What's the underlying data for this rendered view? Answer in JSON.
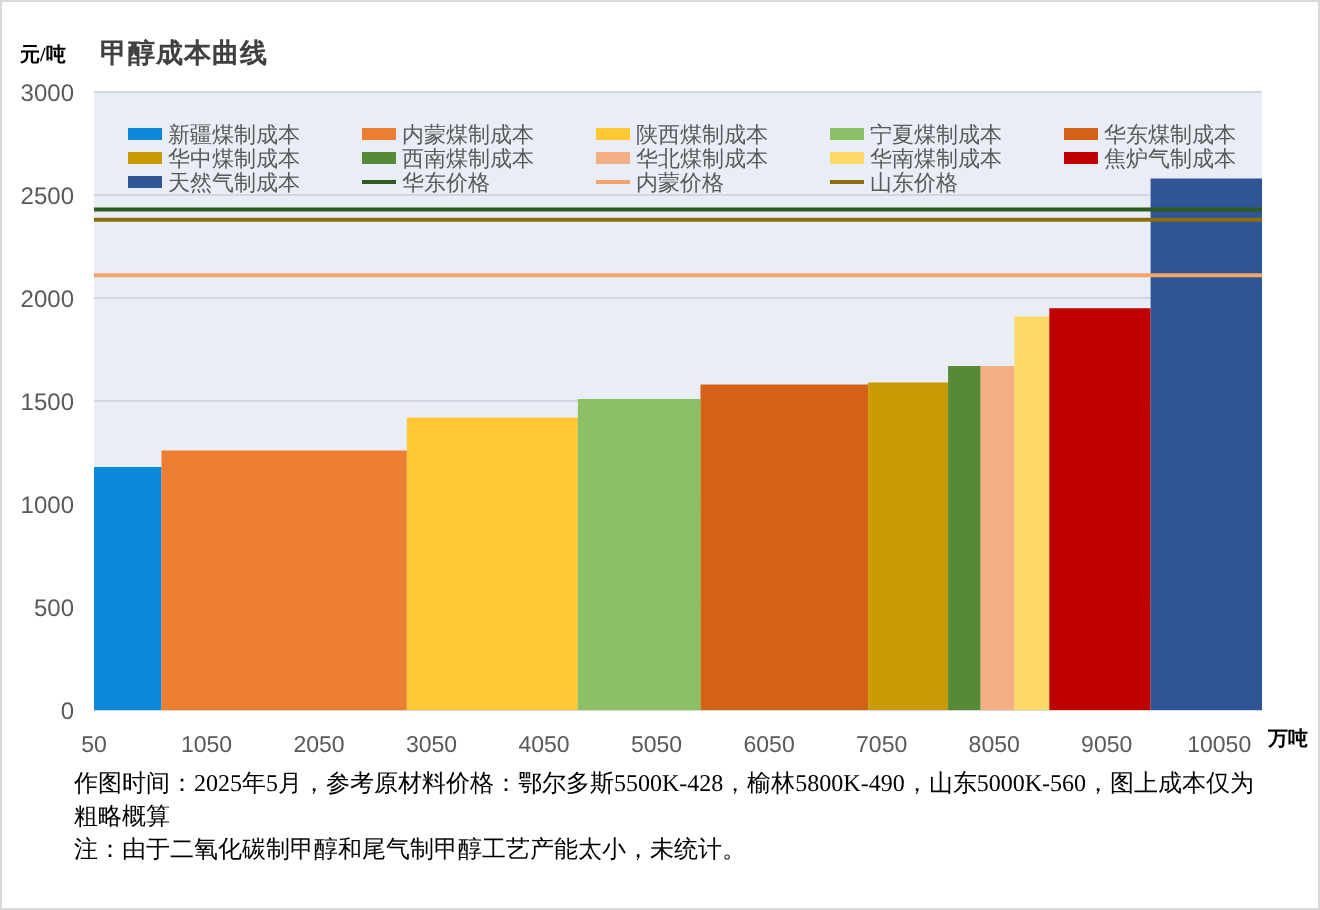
{
  "chart_data": {
    "type": "area",
    "title": "甲醇成本曲线",
    "xlabel": "万吨",
    "ylabel": "元/吨",
    "xlim": [
      50,
      10430
    ],
    "xticks": [
      50,
      1050,
      2050,
      3050,
      4050,
      5050,
      6050,
      7050,
      8050,
      9050,
      10050
    ],
    "ylim": [
      0,
      3000
    ],
    "yticks": [
      0,
      500,
      1000,
      1500,
      2000,
      2500,
      3000
    ],
    "grid": "y",
    "legend": "top",
    "series": [
      {
        "name": "新疆煤制成本",
        "color": "#0b88d8",
        "x": [
          50,
          650
        ],
        "values": [
          1180,
          1180
        ]
      },
      {
        "name": "内蒙煤制成本",
        "color": "#ed7d31",
        "x": [
          650,
          2830
        ],
        "values": [
          1260,
          1260
        ]
      },
      {
        "name": "陕西煤制成本",
        "color": "#ffc832",
        "x": [
          2830,
          4350
        ],
        "values": [
          1420,
          1420
        ]
      },
      {
        "name": "宁夏煤制成本",
        "color": "#8bc067",
        "x": [
          4350,
          5440
        ],
        "values": [
          1510,
          1510
        ]
      },
      {
        "name": "华东煤制成本",
        "color": "#d36116",
        "x": [
          5440,
          6930
        ],
        "values": [
          1580,
          1580
        ]
      },
      {
        "name": "华中煤制成本",
        "color": "#c99a03",
        "x": [
          6930,
          7640
        ],
        "values": [
          1590,
          1590
        ]
      },
      {
        "name": "西南煤制成本",
        "color": "#558a37",
        "x": [
          7640,
          7930
        ],
        "values": [
          1670,
          1670
        ]
      },
      {
        "name": "华北煤制成本",
        "color": "#f3af83",
        "x": [
          7930,
          8230
        ],
        "values": [
          1670,
          1670
        ]
      },
      {
        "name": "华南煤制成本",
        "color": "#ffd966",
        "x": [
          8230,
          8540
        ],
        "values": [
          1910,
          1910
        ]
      },
      {
        "name": "焦炉气制成本",
        "color": "#c00000",
        "x": [
          8540,
          9440
        ],
        "values": [
          1950,
          1950
        ]
      },
      {
        "name": "天然气制成本",
        "color": "#2f5597",
        "x": [
          9440,
          10430
        ],
        "values": [
          2580,
          2580
        ]
      },
      {
        "name": "华东价格",
        "type": "line",
        "color": "#2e5b1f",
        "x": [
          50,
          10430
        ],
        "values": [
          2430,
          2430
        ]
      },
      {
        "name": "内蒙价格",
        "type": "line",
        "color": "#f4a46b",
        "x": [
          50,
          10430
        ],
        "values": [
          2110,
          2110
        ]
      },
      {
        "name": "山东价格",
        "type": "line",
        "color": "#8e6c10",
        "x": [
          50,
          10430
        ],
        "values": [
          2380,
          2380
        ]
      }
    ],
    "annotations": [
      "作图时间：2025年5月，参考原材料价格：鄂尔多斯5500K-428，榆林5800K-490，山东5000K-560，图上成本仅为粗略概算",
      "注：由于二氧化碳制甲醇和尾气制甲醇工艺产能太小，未统计。"
    ]
  }
}
